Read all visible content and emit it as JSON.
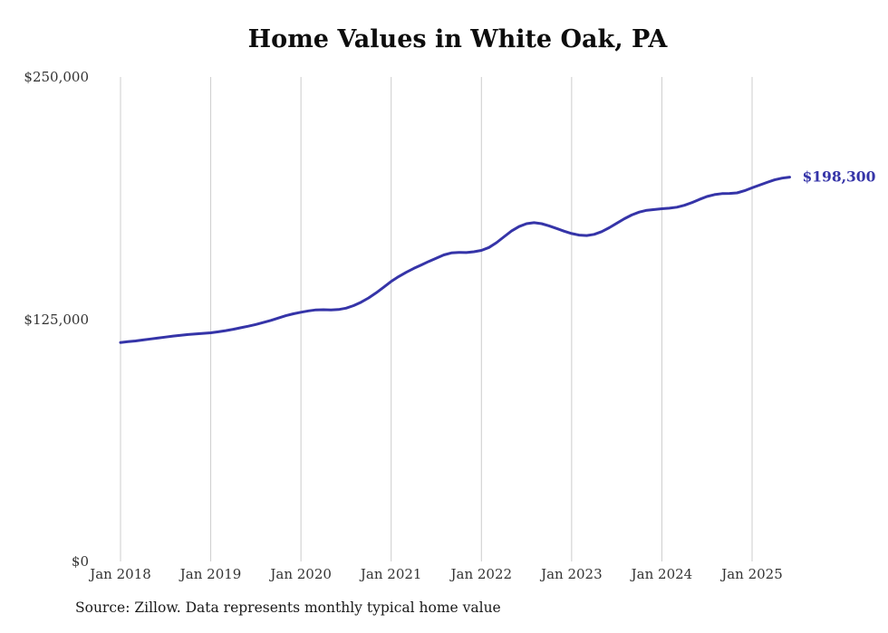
{
  "chart_data": {
    "type": "line",
    "title": "Home Values in White Oak, PA",
    "source_note": "Source: Zillow. Data represents monthly typical home value",
    "end_label": "$198,300",
    "line_color": "#3534a8",
    "grid_color": "#cccccc",
    "legend": "none",
    "grid": "vertical-only",
    "ylim": [
      0,
      250000
    ],
    "y_ticks": [
      {
        "label": "$0",
        "value": 0
      },
      {
        "label": "$125,000",
        "value": 125000
      },
      {
        "label": "$250,000",
        "value": 250000
      }
    ],
    "x_tick_labels": [
      "Jan 2018",
      "Jan 2019",
      "Jan 2020",
      "Jan 2021",
      "Jan 2022",
      "Jan 2023",
      "Jan 2024",
      "Jan 2025"
    ],
    "x_frequency": "monthly",
    "months": [
      "2018-01",
      "2018-02",
      "2018-03",
      "2018-04",
      "2018-05",
      "2018-06",
      "2018-07",
      "2018-08",
      "2018-09",
      "2018-10",
      "2018-11",
      "2018-12",
      "2019-01",
      "2019-02",
      "2019-03",
      "2019-04",
      "2019-05",
      "2019-06",
      "2019-07",
      "2019-08",
      "2019-09",
      "2019-10",
      "2019-11",
      "2019-12",
      "2020-01",
      "2020-02",
      "2020-03",
      "2020-04",
      "2020-05",
      "2020-06",
      "2020-07",
      "2020-08",
      "2020-09",
      "2020-10",
      "2020-11",
      "2020-12",
      "2021-01",
      "2021-02",
      "2021-03",
      "2021-04",
      "2021-05",
      "2021-06",
      "2021-07",
      "2021-08",
      "2021-09",
      "2021-10",
      "2021-11",
      "2021-12",
      "2022-01",
      "2022-02",
      "2022-03",
      "2022-04",
      "2022-05",
      "2022-06",
      "2022-07",
      "2022-08",
      "2022-09",
      "2022-10",
      "2022-11",
      "2022-12",
      "2023-01",
      "2023-02",
      "2023-03",
      "2023-04",
      "2023-05",
      "2023-06",
      "2023-07",
      "2023-08",
      "2023-09",
      "2023-10",
      "2023-11",
      "2023-12",
      "2024-01",
      "2024-02",
      "2024-03",
      "2024-04",
      "2024-05",
      "2024-06",
      "2024-07",
      "2024-08",
      "2024-09",
      "2024-10",
      "2024-11",
      "2024-12",
      "2025-01",
      "2025-02",
      "2025-03",
      "2025-04",
      "2025-05",
      "2025-06"
    ],
    "values": [
      113000,
      113400,
      113800,
      114300,
      114800,
      115300,
      115800,
      116300,
      116700,
      117100,
      117400,
      117700,
      118000,
      118500,
      119100,
      119800,
      120600,
      121400,
      122300,
      123300,
      124400,
      125600,
      126800,
      127800,
      128600,
      129300,
      129800,
      129900,
      129800,
      130000,
      130700,
      132000,
      133800,
      136000,
      138600,
      141500,
      144500,
      147000,
      149200,
      151200,
      153000,
      154800,
      156500,
      158200,
      159200,
      159500,
      159400,
      159800,
      160500,
      162000,
      164500,
      167500,
      170500,
      172800,
      174300,
      174800,
      174300,
      173200,
      171800,
      170400,
      169200,
      168400,
      168200,
      168800,
      170200,
      172200,
      174500,
      176800,
      178800,
      180300,
      181200,
      181600,
      182000,
      182300,
      182800,
      183800,
      185200,
      186800,
      188300,
      189300,
      189800,
      189900,
      190200,
      191300,
      192800,
      194200,
      195600,
      196900,
      197800,
      198300
    ]
  }
}
